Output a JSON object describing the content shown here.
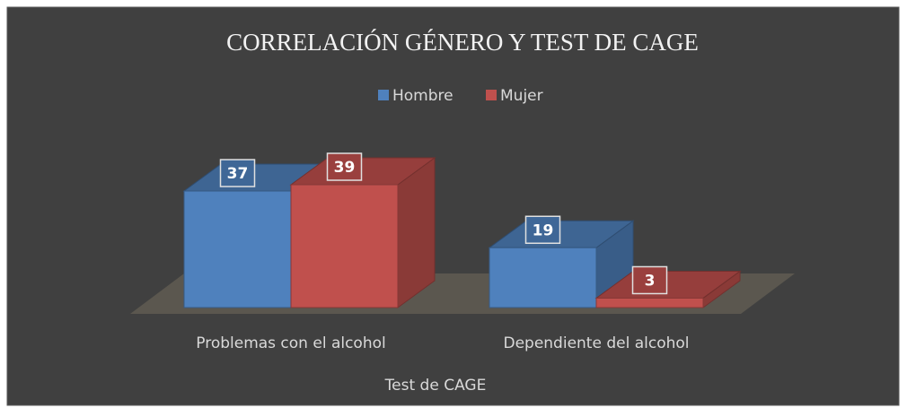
{
  "chart_data": {
    "type": "bar3d",
    "title": "CORRELACIÓN GÉNERO Y TEST DE CAGE",
    "x_label": "Test de CAGE",
    "categories": [
      "Problemas con el alcohol",
      "Dependiente del alcohol"
    ],
    "series": [
      {
        "name": "Hombre",
        "color": "#4f81bd",
        "values": [
          37,
          19
        ]
      },
      {
        "name": "Mujer",
        "color": "#c0504d",
        "values": [
          39,
          3
        ]
      }
    ],
    "legend": "top"
  }
}
